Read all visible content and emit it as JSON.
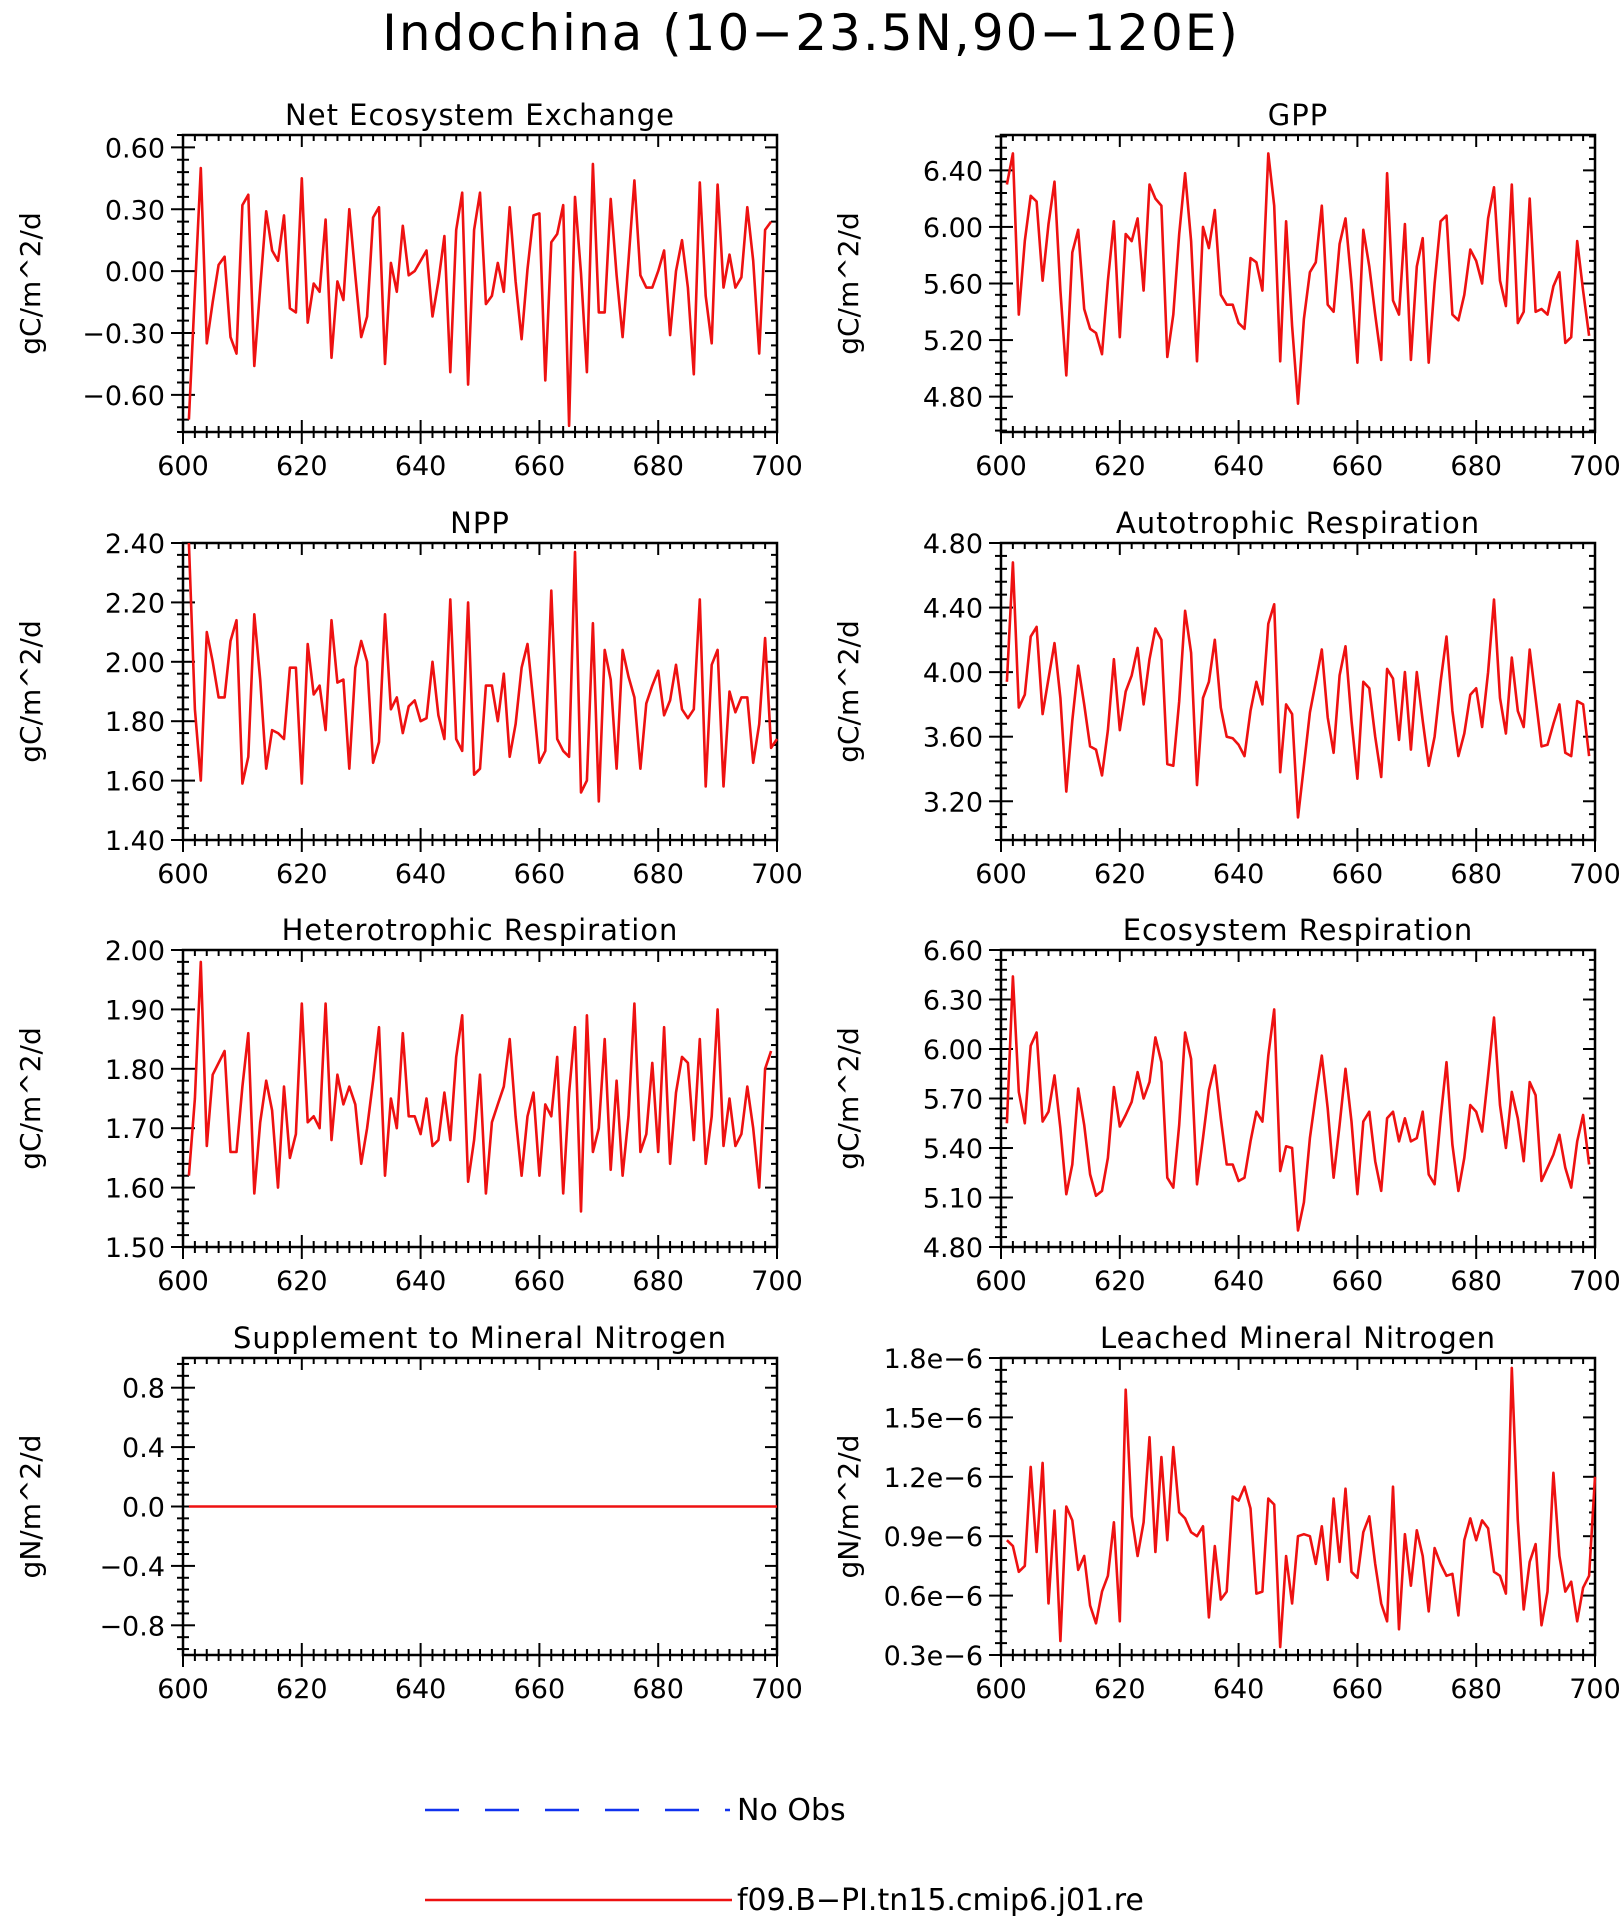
{
  "page_title": "Indochina (10−23.5N,90−120E)",
  "legend": [
    {
      "label": "No Obs",
      "color": "#1133ee",
      "style": "dashed"
    },
    {
      "label": "f09.B−PI.tn15.cmip6.j01.re",
      "color": "#ee1111",
      "style": "solid"
    }
  ],
  "series_color": "#ee1111",
  "chart_data": [
    {
      "type": "line",
      "title": "Net Ecosystem Exchange",
      "ylabel": "gC/m^2/d",
      "xlim": [
        600,
        700
      ],
      "ylim": [
        -0.78,
        0.66
      ],
      "xticks": [
        600,
        620,
        640,
        660,
        680,
        700
      ],
      "xtick_labels": [
        "600",
        "620",
        "640",
        "660",
        "680",
        "700"
      ],
      "yticks": [
        -0.6,
        -0.3,
        0.0,
        0.3,
        0.6
      ],
      "ytick_labels": [
        "−0.60",
        "−0.30",
        "0.00",
        "0.30",
        "0.60"
      ],
      "x_start": 601,
      "values": [
        -0.72,
        -0.1,
        0.5,
        -0.35,
        -0.15,
        0.03,
        0.07,
        -0.32,
        -0.4,
        0.32,
        0.37,
        -0.46,
        -0.08,
        0.29,
        0.1,
        0.05,
        0.27,
        -0.18,
        -0.2,
        0.45,
        -0.25,
        -0.06,
        -0.1,
        0.25,
        -0.42,
        -0.05,
        -0.14,
        0.3,
        -0.02,
        -0.32,
        -0.22,
        0.26,
        0.31,
        -0.45,
        0.04,
        -0.1,
        0.22,
        -0.02,
        0.0,
        0.05,
        0.1,
        -0.22,
        -0.05,
        0.17,
        -0.49,
        0.2,
        0.38,
        -0.55,
        0.2,
        0.38,
        -0.16,
        -0.12,
        0.04,
        -0.1,
        0.31,
        -0.05,
        -0.33,
        0.01,
        0.27,
        0.28,
        -0.53,
        0.14,
        0.18,
        0.32,
        -0.75,
        0.36,
        -0.01,
        -0.49,
        0.52,
        -0.2,
        -0.2,
        0.35,
        -0.02,
        -0.32,
        0.05,
        0.44,
        -0.02,
        -0.08,
        -0.08,
        0.0,
        0.1,
        -0.31,
        0.0,
        0.15,
        -0.08,
        -0.5,
        0.43,
        -0.12,
        -0.35,
        0.42,
        -0.08,
        0.08,
        -0.08,
        -0.03,
        0.31,
        0.05,
        -0.4,
        0.2,
        0.24
      ]
    },
    {
      "type": "line",
      "title": "GPP",
      "ylabel": "gC/m^2/d",
      "xlim": [
        600,
        700
      ],
      "ylim": [
        4.55,
        6.65
      ],
      "xticks": [
        600,
        620,
        640,
        660,
        680,
        700
      ],
      "xtick_labels": [
        "600",
        "620",
        "640",
        "660",
        "680",
        "700"
      ],
      "yticks": [
        4.8,
        5.2,
        5.6,
        6.0,
        6.4
      ],
      "ytick_labels": [
        "4.80",
        "5.20",
        "5.60",
        "6.00",
        "6.40"
      ],
      "x_start": 601,
      "values": [
        6.3,
        6.52,
        5.38,
        5.9,
        6.22,
        6.18,
        5.62,
        6.02,
        6.32,
        5.55,
        4.95,
        5.82,
        5.98,
        5.42,
        5.28,
        5.25,
        5.1,
        5.62,
        6.04,
        5.22,
        5.95,
        5.9,
        6.06,
        5.55,
        6.3,
        6.2,
        6.15,
        5.08,
        5.38,
        5.95,
        6.38,
        5.9,
        5.05,
        6.0,
        5.85,
        6.12,
        5.52,
        5.45,
        5.45,
        5.32,
        5.28,
        5.78,
        5.75,
        5.55,
        6.52,
        6.15,
        5.05,
        6.04,
        5.3,
        4.75,
        5.35,
        5.68,
        5.75,
        6.15,
        5.45,
        5.4,
        5.88,
        6.06,
        5.6,
        5.04,
        5.98,
        5.72,
        5.38,
        5.06,
        6.38,
        5.48,
        5.38,
        6.02,
        5.06,
        5.72,
        5.92,
        5.04,
        5.6,
        6.04,
        6.08,
        5.38,
        5.34,
        5.52,
        5.84,
        5.76,
        5.6,
        6.06,
        6.28,
        5.62,
        5.44,
        6.3,
        5.32,
        5.4,
        6.2,
        5.4,
        5.42,
        5.38,
        5.58,
        5.68,
        5.18,
        5.22,
        5.9,
        5.55,
        5.23
      ]
    },
    {
      "type": "line",
      "title": "NPP",
      "ylabel": "gC/m^2/d",
      "xlim": [
        600,
        700
      ],
      "ylim": [
        1.4,
        2.4
      ],
      "xticks": [
        600,
        620,
        640,
        660,
        680,
        700
      ],
      "xtick_labels": [
        "600",
        "620",
        "640",
        "660",
        "680",
        "700"
      ],
      "yticks": [
        1.4,
        1.6,
        1.8,
        2.0,
        2.2,
        2.4
      ],
      "ytick_labels": [
        "1.40",
        "1.60",
        "1.80",
        "2.00",
        "2.20",
        "2.40"
      ],
      "x_start": 601,
      "values": [
        2.4,
        1.84,
        1.6,
        2.1,
        2.0,
        1.88,
        1.88,
        2.07,
        2.14,
        1.59,
        1.68,
        2.16,
        1.94,
        1.64,
        1.77,
        1.76,
        1.74,
        1.98,
        1.98,
        1.59,
        2.06,
        1.89,
        1.92,
        1.77,
        2.14,
        1.93,
        1.94,
        1.64,
        1.98,
        2.07,
        2.0,
        1.66,
        1.73,
        2.16,
        1.84,
        1.88,
        1.76,
        1.85,
        1.87,
        1.8,
        1.81,
        2.0,
        1.82,
        1.74,
        2.21,
        1.74,
        1.7,
        2.2,
        1.62,
        1.64,
        1.92,
        1.92,
        1.8,
        1.96,
        1.68,
        1.79,
        1.98,
        2.06,
        1.86,
        1.66,
        1.7,
        2.24,
        1.74,
        1.7,
        1.68,
        2.37,
        1.56,
        1.6,
        2.13,
        1.53,
        2.04,
        1.94,
        1.64,
        2.04,
        1.95,
        1.88,
        1.64,
        1.86,
        1.92,
        1.97,
        1.82,
        1.87,
        1.99,
        1.84,
        1.81,
        1.84,
        2.21,
        1.58,
        1.99,
        2.04,
        1.58,
        1.9,
        1.83,
        1.88,
        1.88,
        1.66,
        1.79,
        2.08,
        1.71,
        1.74
      ]
    },
    {
      "type": "line",
      "title": "Autotrophic Respiration",
      "ylabel": "gC/m^2/d",
      "xlim": [
        600,
        700
      ],
      "ylim": [
        2.96,
        4.8
      ],
      "xticks": [
        600,
        620,
        640,
        660,
        680,
        700
      ],
      "xtick_labels": [
        "600",
        "620",
        "640",
        "660",
        "680",
        "700"
      ],
      "yticks": [
        3.2,
        3.6,
        4.0,
        4.4,
        4.8
      ],
      "ytick_labels": [
        "3.20",
        "3.60",
        "4.00",
        "4.40",
        "4.80"
      ],
      "x_start": 601,
      "values": [
        3.94,
        4.68,
        3.78,
        3.86,
        4.22,
        4.28,
        3.74,
        3.96,
        4.18,
        3.84,
        3.26,
        3.7,
        4.04,
        3.8,
        3.54,
        3.52,
        3.36,
        3.64,
        4.08,
        3.64,
        3.88,
        3.98,
        4.15,
        3.8,
        4.08,
        4.27,
        4.2,
        3.43,
        3.42,
        3.82,
        4.38,
        4.12,
        3.3,
        3.84,
        3.94,
        4.2,
        3.78,
        3.6,
        3.59,
        3.55,
        3.48,
        3.76,
        3.94,
        3.8,
        4.3,
        4.42,
        3.38,
        3.8,
        3.74,
        3.1,
        3.42,
        3.75,
        3.94,
        4.14,
        3.72,
        3.5,
        3.98,
        4.16,
        3.7,
        3.34,
        3.94,
        3.9,
        3.6,
        3.35,
        4.02,
        3.96,
        3.58,
        4.0,
        3.52,
        4.0,
        3.7,
        3.42,
        3.6,
        3.94,
        4.22,
        3.76,
        3.48,
        3.62,
        3.86,
        3.9,
        3.66,
        4.0,
        4.45,
        3.84,
        3.62,
        4.09,
        3.76,
        3.66,
        4.14,
        3.84,
        3.54,
        3.55,
        3.68,
        3.8,
        3.5,
        3.48,
        3.82,
        3.8,
        3.48
      ]
    },
    {
      "type": "line",
      "title": "Heterotrophic Respiration",
      "ylabel": "gC/m^2/d",
      "xlim": [
        600,
        700
      ],
      "ylim": [
        1.5,
        2.0
      ],
      "xticks": [
        600,
        620,
        640,
        660,
        680,
        700
      ],
      "xtick_labels": [
        "600",
        "620",
        "640",
        "660",
        "680",
        "700"
      ],
      "yticks": [
        1.5,
        1.6,
        1.7,
        1.8,
        1.9,
        2.0
      ],
      "ytick_labels": [
        "1.50",
        "1.60",
        "1.70",
        "1.80",
        "1.90",
        "2.00"
      ],
      "x_start": 601,
      "values": [
        1.62,
        1.75,
        1.98,
        1.67,
        1.79,
        1.81,
        1.83,
        1.66,
        1.66,
        1.77,
        1.86,
        1.59,
        1.71,
        1.78,
        1.73,
        1.6,
        1.77,
        1.65,
        1.69,
        1.91,
        1.71,
        1.72,
        1.7,
        1.91,
        1.68,
        1.79,
        1.74,
        1.77,
        1.74,
        1.64,
        1.7,
        1.78,
        1.87,
        1.62,
        1.75,
        1.7,
        1.86,
        1.72,
        1.72,
        1.69,
        1.75,
        1.67,
        1.68,
        1.76,
        1.68,
        1.82,
        1.89,
        1.61,
        1.68,
        1.79,
        1.59,
        1.71,
        1.74,
        1.77,
        1.85,
        1.72,
        1.62,
        1.72,
        1.76,
        1.62,
        1.74,
        1.72,
        1.82,
        1.59,
        1.76,
        1.87,
        1.56,
        1.89,
        1.66,
        1.7,
        1.85,
        1.63,
        1.78,
        1.62,
        1.72,
        1.91,
        1.66,
        1.69,
        1.81,
        1.66,
        1.87,
        1.64,
        1.76,
        1.82,
        1.81,
        1.68,
        1.85,
        1.64,
        1.72,
        1.9,
        1.67,
        1.75,
        1.67,
        1.69,
        1.77,
        1.7,
        1.6,
        1.8,
        1.83
      ]
    },
    {
      "type": "line",
      "title": "Ecosystem Respiration",
      "ylabel": "gC/m^2/d",
      "xlim": [
        600,
        700
      ],
      "ylim": [
        4.8,
        6.6
      ],
      "xticks": [
        600,
        620,
        640,
        660,
        680,
        700
      ],
      "xtick_labels": [
        "600",
        "620",
        "640",
        "660",
        "680",
        "700"
      ],
      "yticks": [
        4.8,
        5.1,
        5.4,
        5.7,
        6.0,
        6.3,
        6.6
      ],
      "ytick_labels": [
        "4.80",
        "5.10",
        "5.40",
        "5.70",
        "6.00",
        "6.30",
        "6.60"
      ],
      "x_start": 601,
      "values": [
        5.55,
        6.44,
        5.74,
        5.55,
        6.02,
        6.1,
        5.56,
        5.62,
        5.84,
        5.52,
        5.12,
        5.3,
        5.76,
        5.54,
        5.24,
        5.11,
        5.14,
        5.34,
        5.77,
        5.53,
        5.6,
        5.68,
        5.86,
        5.7,
        5.8,
        6.07,
        5.92,
        5.22,
        5.16,
        5.54,
        6.1,
        5.94,
        5.18,
        5.46,
        5.75,
        5.9,
        5.58,
        5.3,
        5.3,
        5.2,
        5.22,
        5.44,
        5.62,
        5.56,
        5.96,
        6.24,
        5.26,
        5.41,
        5.4,
        4.9,
        5.07,
        5.46,
        5.72,
        5.96,
        5.64,
        5.22,
        5.54,
        5.88,
        5.56,
        5.12,
        5.56,
        5.62,
        5.32,
        5.14,
        5.58,
        5.62,
        5.44,
        5.58,
        5.44,
        5.46,
        5.62,
        5.24,
        5.18,
        5.58,
        5.92,
        5.42,
        5.14,
        5.34,
        5.66,
        5.62,
        5.5,
        5.84,
        6.19,
        5.66,
        5.4,
        5.74,
        5.58,
        5.32,
        5.8,
        5.72,
        5.2,
        5.28,
        5.36,
        5.48,
        5.28,
        5.16,
        5.44,
        5.6,
        5.3
      ]
    },
    {
      "type": "line",
      "title": "Supplement to Mineral Nitrogen",
      "ylabel": "gN/m^2/d",
      "xlim": [
        600,
        700
      ],
      "ylim": [
        -1.0,
        1.0
      ],
      "xticks": [
        600,
        620,
        640,
        660,
        680,
        700
      ],
      "xtick_labels": [
        "600",
        "620",
        "640",
        "660",
        "680",
        "700"
      ],
      "yticks": [
        -0.8,
        -0.4,
        0.0,
        0.4,
        0.8
      ],
      "ytick_labels": [
        "−0.8",
        "−0.4",
        "0.0",
        "0.4",
        "0.8"
      ],
      "x": [
        601,
        700
      ],
      "values": [
        0.0,
        0.0
      ]
    },
    {
      "type": "line",
      "title": "Leached Mineral Nitrogen",
      "ylabel": "gN/m^2/d",
      "xlim": [
        600,
        700
      ],
      "ylim": [
        3e-07,
        1.8e-06
      ],
      "xticks": [
        600,
        620,
        640,
        660,
        680,
        700
      ],
      "xtick_labels": [
        "600",
        "620",
        "640",
        "660",
        "680",
        "700"
      ],
      "yticks": [
        3e-07,
        6e-07,
        9e-07,
        1.2e-06,
        1.5e-06,
        1.8e-06
      ],
      "ytick_labels": [
        "0.3e−6",
        "0.6e−6",
        "0.9e−6",
        "1.2e−6",
        "1.5e−6",
        "1.8e−6"
      ],
      "x_start": 601,
      "values": [
        8.8e-07,
        8.5e-07,
        7.2e-07,
        7.5e-07,
        1.25e-06,
        8.2e-07,
        1.27e-06,
        5.6e-07,
        1.03e-06,
        3.7e-07,
        1.05e-06,
        9.8e-07,
        7.3e-07,
        8e-07,
        5.5e-07,
        4.6e-07,
        6.2e-07,
        7e-07,
        9.7e-07,
        4.7e-07,
        1.64e-06,
        1e-06,
        8e-07,
        9.7e-07,
        1.4e-06,
        8.2e-07,
        1.3e-06,
        8.8e-07,
        1.35e-06,
        1.02e-06,
        9.9e-07,
        9.2e-07,
        9e-07,
        9.5e-07,
        4.9e-07,
        8.5e-07,
        5.8e-07,
        6.2e-07,
        1.1e-06,
        1.08e-06,
        1.15e-06,
        1.04e-06,
        6.1e-07,
        6.2e-07,
        1.09e-06,
        1.06e-06,
        3.4e-07,
        8e-07,
        5.6e-07,
        9e-07,
        9.1e-07,
        9e-07,
        7.6e-07,
        9.5e-07,
        6.8e-07,
        1.09e-06,
        7.7e-07,
        1.14e-06,
        7.2e-07,
        6.9e-07,
        9.2e-07,
        1e-06,
        7.6e-07,
        5.6e-07,
        4.7e-07,
        1.15e-06,
        4.3e-07,
        9.1e-07,
        6.5e-07,
        9.3e-07,
        8e-07,
        5.2e-07,
        8.4e-07,
        7.6e-07,
        7e-07,
        7.1e-07,
        5e-07,
        8.8e-07,
        9.9e-07,
        8.8e-07,
        9.8e-07,
        9.4e-07,
        7.2e-07,
        7e-07,
        6.1e-07,
        1.75e-06,
        9.8e-07,
        5.3e-07,
        7.7e-07,
        8.6e-07,
        4.5e-07,
        6.2e-07,
        1.22e-06,
        8e-07,
        6.2e-07,
        6.7e-07,
        4.7e-07,
        6.4e-07,
        7e-07,
        1.2e-06
      ]
    }
  ]
}
